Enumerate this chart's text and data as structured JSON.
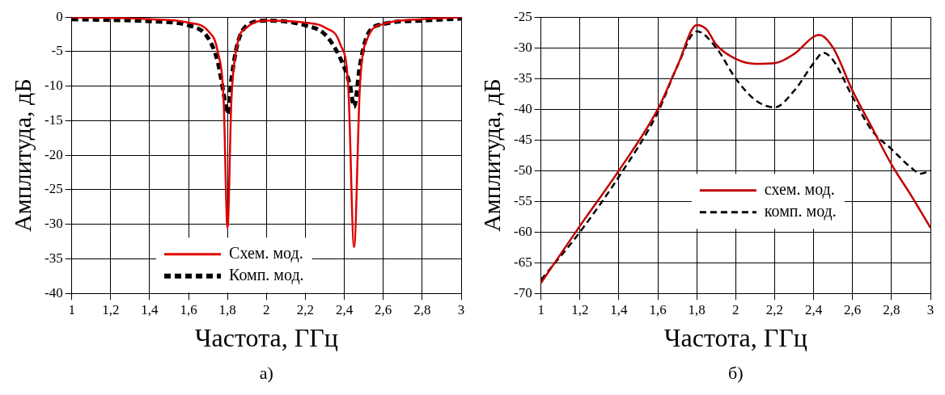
{
  "chart_data": [
    {
      "type": "line",
      "xlabel": "Частота, ГГц",
      "ylabel": "Амплитуда, дБ",
      "annotations": [
        "а)"
      ],
      "xlim": [
        1,
        3
      ],
      "xticks": [
        {
          "value": 1,
          "label": "1"
        },
        {
          "value": 1.2,
          "label": "1,2"
        },
        {
          "value": 1.4,
          "label": "1,4"
        },
        {
          "value": 1.6,
          "label": "1,6"
        },
        {
          "value": 1.8,
          "label": "1,8"
        },
        {
          "value": 2,
          "label": "2"
        },
        {
          "value": 2.2,
          "label": "2,2"
        },
        {
          "value": 2.4,
          "label": "2,4"
        },
        {
          "value": 2.6,
          "label": "2,6"
        },
        {
          "value": 2.8,
          "label": "2,8"
        },
        {
          "value": 3,
          "label": "3"
        }
      ],
      "ylim": [
        -40,
        0
      ],
      "yticks": [
        -40,
        -35,
        -30,
        -25,
        -20,
        -15,
        -10,
        -5,
        0
      ],
      "grid": true,
      "legend": "bottom",
      "marker": "none",
      "series": [
        {
          "name": "Схем. мод.",
          "color": "#e00000",
          "line_style": "solid",
          "x": [
            1,
            1.4,
            1.6,
            1.7,
            1.75,
            1.78,
            1.8,
            1.82,
            1.85,
            1.9,
            2,
            2.2,
            2.3,
            2.38,
            2.42,
            2.45,
            2.48,
            2.52,
            2.6,
            2.8,
            3
          ],
          "values": [
            0,
            -0.3,
            -0.8,
            -2,
            -5,
            -12,
            -30.5,
            -12,
            -4,
            -1.5,
            -0.5,
            -0.8,
            -1.5,
            -4,
            -10,
            -33.3,
            -10,
            -3,
            -1,
            -0.3,
            0
          ]
        },
        {
          "name": "Комп. мод.",
          "color": "#000000",
          "line_style": "dashed",
          "x": [
            1,
            1.4,
            1.6,
            1.7,
            1.75,
            1.78,
            1.8,
            1.82,
            1.85,
            1.9,
            2,
            2.2,
            2.3,
            2.38,
            2.43,
            2.45,
            2.48,
            2.52,
            2.6,
            2.8,
            3
          ],
          "values": [
            -0.3,
            -0.6,
            -1.2,
            -3,
            -6.5,
            -11,
            -14,
            -9,
            -4,
            -1.2,
            -0.5,
            -1.2,
            -2.5,
            -6,
            -10,
            -13,
            -7,
            -2.5,
            -1,
            -0.5,
            -0.2
          ]
        }
      ]
    },
    {
      "type": "line",
      "xlabel": "Частота, ГГц",
      "ylabel": "Амплитуда, дБ",
      "annotations": [
        "б)"
      ],
      "xlim": [
        1,
        3
      ],
      "xticks": [
        {
          "value": 1,
          "label": "1"
        },
        {
          "value": 1.2,
          "label": "1,2"
        },
        {
          "value": 1.4,
          "label": "1,4"
        },
        {
          "value": 1.6,
          "label": "1,6"
        },
        {
          "value": 1.8,
          "label": "1,8"
        },
        {
          "value": 2,
          "label": "2"
        },
        {
          "value": 2.2,
          "label": "2,2"
        },
        {
          "value": 2.4,
          "label": "2,4"
        },
        {
          "value": 2.6,
          "label": "2,6"
        },
        {
          "value": 2.8,
          "label": "2,8"
        },
        {
          "value": 3,
          "label": "3"
        }
      ],
      "ylim": [
        -70,
        -25
      ],
      "yticks": [
        -70,
        -65,
        -60,
        -55,
        -50,
        -45,
        -40,
        -35,
        -30,
        -25
      ],
      "grid": true,
      "legend": "bottom",
      "marker": "none",
      "series": [
        {
          "name": "схем. мод.",
          "color": "#c00000",
          "line_style": "solid",
          "x": [
            1,
            1.2,
            1.4,
            1.6,
            1.7,
            1.8,
            1.85,
            1.9,
            2,
            2.1,
            2.2,
            2.3,
            2.4,
            2.43,
            2.5,
            2.6,
            2.7,
            2.8,
            2.9,
            3
          ],
          "values": [
            -68.3,
            -59,
            -50,
            -40,
            -33,
            -26.3,
            -27,
            -29.5,
            -31.8,
            -32.6,
            -32.5,
            -31,
            -28.2,
            -27.9,
            -30,
            -37,
            -43,
            -49,
            -54,
            -59.3
          ]
        },
        {
          "name": "комп. мод.",
          "color": "#000000",
          "line_style": "dashed",
          "x": [
            1,
            1.2,
            1.4,
            1.6,
            1.7,
            1.8,
            1.9,
            2,
            2.1,
            2.2,
            2.3,
            2.4,
            2.45,
            2.5,
            2.6,
            2.7,
            2.8,
            2.9,
            2.95,
            3
          ],
          "values": [
            -67.8,
            -60,
            -51,
            -40.5,
            -33,
            -27.3,
            -30,
            -35,
            -38.5,
            -39.7,
            -37,
            -32.5,
            -30.8,
            -32,
            -38,
            -43.5,
            -46.5,
            -49.5,
            -50.5,
            -50
          ]
        }
      ]
    }
  ]
}
